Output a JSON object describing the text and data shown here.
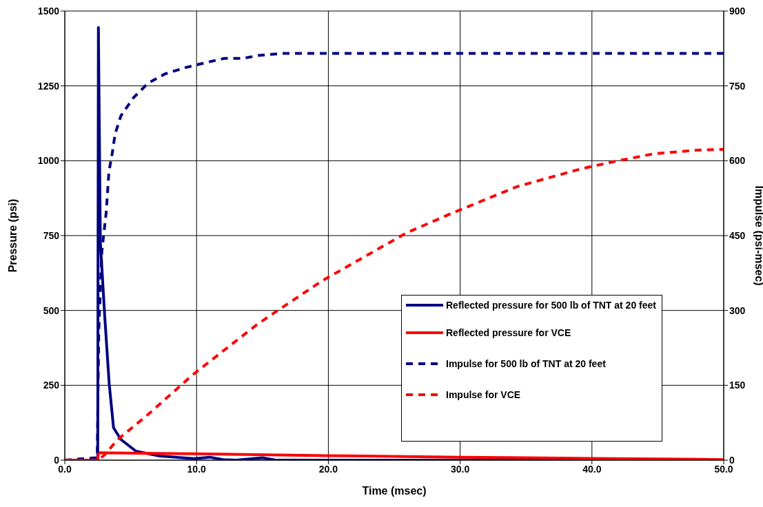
{
  "chart_data": {
    "type": "line",
    "xlabel": "Time (msec)",
    "ylabel": "Pressure (psi)",
    "y2label": "Impulse (psi-msec)",
    "xlim": [
      0,
      50
    ],
    "xticks": [
      {
        "value": 0,
        "label": "0.0"
      },
      {
        "value": 10,
        "label": "10.0"
      },
      {
        "value": 20,
        "label": "20.0"
      },
      {
        "value": 30,
        "label": "30.0"
      },
      {
        "value": 40,
        "label": "40.0"
      },
      {
        "value": 50,
        "label": "50.0"
      }
    ],
    "ylim": [
      0,
      1500
    ],
    "yticks": [
      0,
      250,
      500,
      750,
      1000,
      1250,
      1500
    ],
    "y2lim": [
      0,
      900
    ],
    "y2ticks": [
      0,
      150,
      300,
      450,
      600,
      750,
      900
    ],
    "grid": true,
    "legend": "bottom right",
    "marker": "none",
    "series": [
      {
        "name": "Reflected pressure for 500 lb of TNT at 20 feet",
        "color": "#000080",
        "line_style": "solid",
        "x": [
          0,
          2.5,
          2.55,
          2.7,
          3.03,
          3.37,
          3.7,
          4.26,
          5.4,
          7.2,
          9.8,
          11,
          12,
          13,
          15,
          16,
          20,
          30,
          40,
          50
        ],
        "values": [
          0,
          0,
          1445,
          727,
          481,
          255,
          108,
          69,
          30,
          14,
          5,
          10,
          2,
          0,
          8,
          0,
          0,
          0,
          0,
          0
        ]
      },
      {
        "name": "Reflected pressure for VCE",
        "color": "#ff0000",
        "line_style": "solid",
        "x": [
          0,
          2.5,
          2.55,
          10,
          20,
          30,
          40,
          50
        ],
        "values": [
          0,
          0,
          25,
          21,
          15,
          10,
          6,
          2
        ]
      },
      {
        "name": "Impulse for 500 lb of TNT at 20 feet",
        "color": "#000080",
        "line_style": "dashed",
        "axis": "y2",
        "x": [
          0,
          2.46,
          2.58,
          2.81,
          3.14,
          3.35,
          3.59,
          3.82,
          4.26,
          5.2,
          6.3,
          7.6,
          9.2,
          10.6,
          12.1,
          13.5,
          14.7,
          16.5,
          50
        ],
        "values": [
          0,
          5,
          260,
          418,
          496,
          578,
          613,
          654,
          690,
          726,
          755,
          774,
          787,
          796,
          805,
          805,
          811,
          815,
          815
        ]
      },
      {
        "name": "Impulse for VCE",
        "color": "#ff0000",
        "line_style": "dashed",
        "axis": "y2",
        "x": [
          0,
          2.5,
          3,
          4,
          6.3,
          9.7,
          14.5,
          15.6,
          19.5,
          25.9,
          29.3,
          34.3,
          39.2,
          41.8,
          44.7,
          47.9,
          50
        ],
        "values": [
          0,
          0,
          10,
          41,
          91,
          171,
          270,
          290,
          359,
          455,
          494,
          548,
          584,
          599,
          614,
          621,
          623
        ]
      }
    ]
  }
}
